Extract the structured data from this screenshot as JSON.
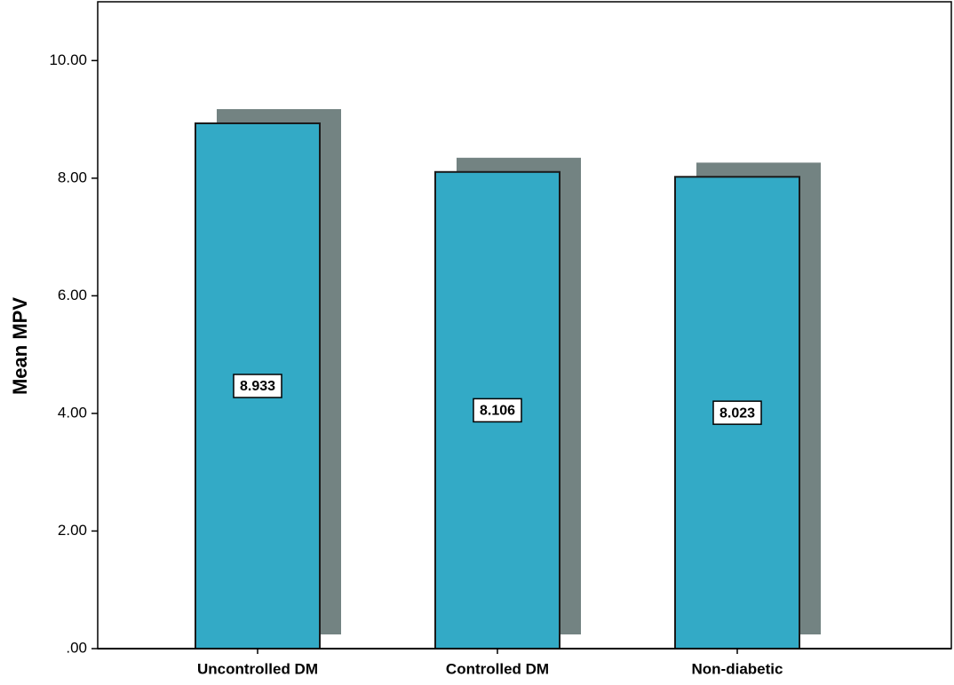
{
  "chart_data": {
    "type": "bar",
    "y_label": "Mean MPV",
    "categories": [
      "Uncontrolled DM",
      "Controlled DM",
      "Non-diabetic"
    ],
    "values": [
      8.933,
      8.106,
      8.023
    ],
    "color": "#33aac6",
    "shadow_color": "#738382",
    "ylim": [
      0,
      11
    ],
    "yticks": [
      {
        "value": 0,
        "label": ".00"
      },
      {
        "value": 2,
        "label": "2.00"
      },
      {
        "value": 4,
        "label": "4.00"
      },
      {
        "value": 6,
        "label": "6.00"
      },
      {
        "value": 8,
        "label": "8.00"
      },
      {
        "value": 10,
        "label": "10.00"
      }
    ]
  }
}
